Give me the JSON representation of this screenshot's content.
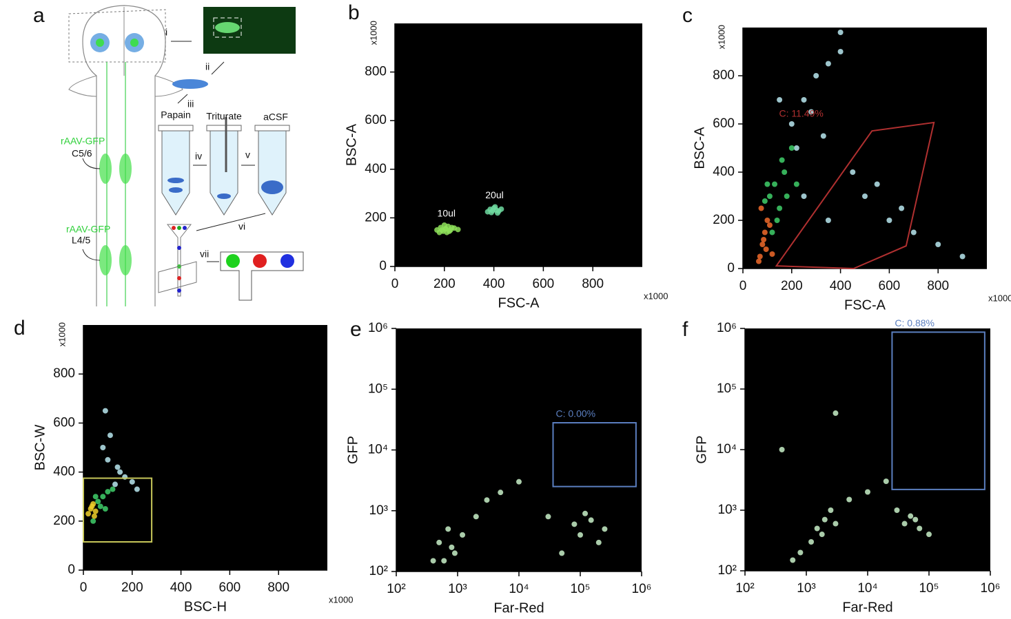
{
  "panel_a": {
    "label": "a",
    "steps": [
      "i",
      "ii",
      "iii",
      "iv",
      "v",
      "vi",
      "vii"
    ],
    "tubes": [
      "Papain",
      "Triturate",
      "aCSF"
    ],
    "injections": [
      {
        "virus": "rAAV-GFP",
        "level": "C5/6"
      },
      {
        "virus": "rAAV-GFP",
        "level": "L4/5"
      }
    ]
  },
  "chart_data": [
    {
      "panel": "b",
      "type": "scatter",
      "xlabel": "FSC-A",
      "ylabel": "BSC-A",
      "scale_note": "x1000",
      "xlim": [
        0,
        1000
      ],
      "ylim": [
        0,
        1000
      ],
      "xticks": [
        0,
        200,
        400,
        600,
        800
      ],
      "yticks": [
        0,
        200,
        400,
        600,
        800
      ],
      "series": [
        {
          "name": "10ul",
          "color": "#8ee05a",
          "x": [
            170,
            185,
            195,
            205,
            215,
            225,
            240,
            255,
            180,
            200,
            210,
            230,
            190,
            220,
            205
          ],
          "values": [
            150,
            160,
            145,
            155,
            165,
            150,
            158,
            152,
            140,
            170,
            140,
            160,
            150,
            145,
            155
          ]
        },
        {
          "name": "20ul",
          "color": "#6fd9a0",
          "x": [
            375,
            385,
            395,
            400,
            410,
            420,
            430,
            390,
            405,
            415
          ],
          "values": [
            225,
            235,
            230,
            240,
            232,
            228,
            236,
            222,
            245,
            220
          ]
        }
      ],
      "gates": []
    },
    {
      "panel": "c",
      "type": "scatter",
      "xlabel": "FSC-A",
      "ylabel": "BSC-A",
      "scale_note": "x1000",
      "xlim": [
        0,
        1000
      ],
      "ylim": [
        0,
        1000
      ],
      "xticks": [
        0,
        200,
        400,
        600,
        800
      ],
      "yticks": [
        0,
        200,
        400,
        600,
        800
      ],
      "series": [
        {
          "color": "#b8e8f0",
          "x": [
            200,
            250,
            300,
            350,
            400,
            220,
            280,
            330,
            450,
            500,
            600,
            700,
            800,
            250,
            350,
            150,
            550,
            650,
            900,
            400
          ],
          "values": [
            600,
            700,
            800,
            850,
            900,
            500,
            650,
            550,
            400,
            300,
            200,
            150,
            100,
            300,
            200,
            700,
            350,
            250,
            50,
            980
          ]
        },
        {
          "color": "#3fcf6a",
          "x": [
            110,
            130,
            150,
            170,
            140,
            160,
            200,
            120,
            180,
            220,
            100,
            90
          ],
          "values": [
            300,
            350,
            250,
            400,
            200,
            450,
            500,
            150,
            300,
            350,
            350,
            280
          ]
        },
        {
          "color": "#f06a2a",
          "x": [
            70,
            80,
            90,
            100,
            75,
            85,
            95,
            110,
            65,
            120
          ],
          "values": [
            50,
            100,
            150,
            200,
            250,
            120,
            80,
            180,
            30,
            60
          ]
        }
      ],
      "gates": [
        {
          "label": "C: 11.49%",
          "color": "#b03030",
          "x": [
            137,
            529,
            783,
            669,
            454
          ],
          "y": [
            11,
            571,
            606,
            94,
            0
          ]
        }
      ]
    },
    {
      "panel": "d",
      "type": "scatter",
      "xlabel": "BSC-H",
      "ylabel": "BSC-W",
      "scale_note": "x1000",
      "xlim": [
        0,
        1000
      ],
      "ylim": [
        0,
        1000
      ],
      "xticks": [
        0,
        200,
        400,
        600,
        800
      ],
      "yticks": [
        0,
        200,
        400,
        600,
        800
      ],
      "series": [
        {
          "color": "#b8e8f0",
          "x": [
            130,
            150,
            170,
            100,
            80,
            200,
            220,
            110,
            140,
            90
          ],
          "values": [
            350,
            400,
            380,
            450,
            500,
            360,
            330,
            550,
            420,
            650
          ]
        },
        {
          "color": "#3fcf6a",
          "x": [
            60,
            80,
            100,
            50,
            70,
            120,
            40,
            90
          ],
          "values": [
            280,
            300,
            320,
            300,
            260,
            330,
            200,
            250
          ]
        },
        {
          "color": "#f0d02a",
          "x": [
            20,
            30,
            40,
            50,
            35,
            45
          ],
          "values": [
            230,
            250,
            270,
            240,
            260,
            220
          ]
        }
      ],
      "gates": [
        {
          "color": "#c8c85a",
          "x": [
            0,
            280,
            280,
            0
          ],
          "y": [
            115,
            115,
            375,
            375
          ]
        }
      ]
    },
    {
      "panel": "e",
      "type": "scatter",
      "xlabel": "Far-Red",
      "ylabel": "GFP",
      "xscale": "log",
      "yscale": "log",
      "xlim": [
        100,
        1000000
      ],
      "ylim": [
        100,
        1000000
      ],
      "xticks": [
        {
          "value": 100,
          "label": "10²"
        },
        {
          "value": 1000,
          "label": "10³"
        },
        {
          "value": 10000,
          "label": "10⁴"
        },
        {
          "value": 100000,
          "label": "10⁵"
        },
        {
          "value": 1000000,
          "label": "10⁶"
        }
      ],
      "yticks": [
        {
          "value": 100,
          "label": "10²"
        },
        {
          "value": 1000,
          "label": "10³"
        },
        {
          "value": 10000,
          "label": "10⁴"
        },
        {
          "value": 100000,
          "label": "10⁵"
        },
        {
          "value": 1000000,
          "label": "10⁶"
        }
      ],
      "series": [
        {
          "color": "#c8f0c8",
          "x": [
            500,
            700,
            900,
            1200,
            2000,
            3000,
            600,
            800,
            100000,
            150000,
            200000,
            80000,
            120000,
            250000,
            5000,
            10000,
            30000,
            400,
            50000
          ],
          "values": [
            300,
            500,
            200,
            400,
            800,
            1500,
            150,
            250,
            400,
            700,
            300,
            600,
            900,
            500,
            2000,
            3000,
            800,
            150,
            200
          ]
        }
      ],
      "gates": [
        {
          "label": "C: 0.00%",
          "color": "#5b7fc0",
          "x": [
            36000,
            810000,
            810000,
            36000
          ],
          "y": [
            28000,
            28000,
            2500,
            2500
          ]
        }
      ]
    },
    {
      "panel": "f",
      "type": "scatter",
      "xlabel": "Far-Red",
      "ylabel": "GFP",
      "xscale": "log",
      "yscale": "log",
      "xlim": [
        100,
        1000000
      ],
      "ylim": [
        100,
        1000000
      ],
      "xticks": [
        {
          "value": 100,
          "label": "10²"
        },
        {
          "value": 1000,
          "label": "10³"
        },
        {
          "value": 10000,
          "label": "10⁴"
        },
        {
          "value": 100000,
          "label": "10⁵"
        },
        {
          "value": 1000000,
          "label": "10⁶"
        }
      ],
      "yticks": [
        {
          "value": 100,
          "label": "10²"
        },
        {
          "value": 1000,
          "label": "10³"
        },
        {
          "value": 10000,
          "label": "10⁴"
        },
        {
          "value": 100000,
          "label": "10⁵"
        },
        {
          "value": 1000000,
          "label": "10⁶"
        }
      ],
      "series": [
        {
          "color": "#c8f0c8",
          "x": [
            1500,
            2000,
            2500,
            1800,
            3000,
            1200,
            800,
            5000,
            40000,
            50000,
            60000,
            70000,
            30000,
            10000,
            600,
            20000,
            100000,
            400,
            3000
          ],
          "values": [
            500,
            700,
            1000,
            400,
            600,
            300,
            200,
            1500,
            600,
            800,
            700,
            500,
            1000,
            2000,
            150,
            3000,
            400,
            10000,
            40000
          ]
        }
      ],
      "gates": [
        {
          "label": "C: 0.88%",
          "color": "#5b7fc0",
          "x": [
            25000,
            810000,
            810000,
            25000
          ],
          "y": [
            870000,
            870000,
            2200,
            2200
          ]
        }
      ]
    }
  ]
}
